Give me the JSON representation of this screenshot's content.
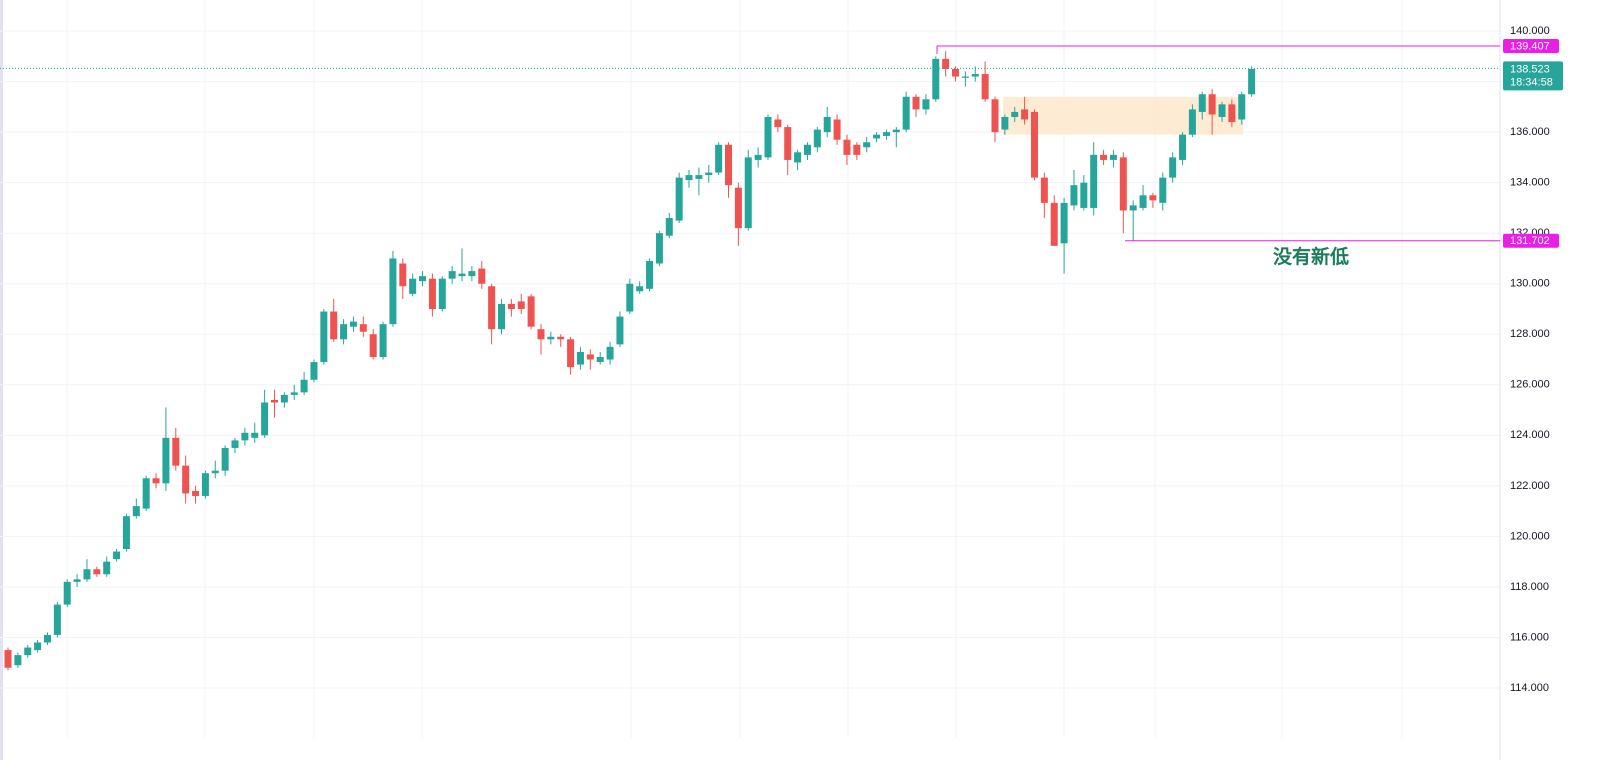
{
  "chart_data": {
    "type": "candlestick",
    "open": [
      115.5,
      114.9,
      115.3,
      115.5,
      115.8,
      116.1,
      117.3,
      118.2,
      118.3,
      118.7,
      118.5,
      119.1,
      119.5,
      120.8,
      121.1,
      122.3,
      122.1,
      123.9,
      122.8,
      121.8,
      121.6,
      122.5,
      122.6,
      123.5,
      123.8,
      123.9,
      124.0,
      125.4,
      125.3,
      125.6,
      125.7,
      126.2,
      126.9,
      128.9,
      127.8,
      128.3,
      128.4,
      128.0,
      127.1,
      128.4,
      130.8,
      129.6,
      130.1,
      130.2,
      129.0,
      130.2,
      130.3,
      130.3,
      130.6,
      129.9,
      128.2,
      129.2,
      129.3,
      129.5,
      128.2,
      127.8,
      127.9,
      127.8,
      126.8,
      127.2,
      126.9,
      127.0,
      127.6,
      128.9,
      129.7,
      129.8,
      130.8,
      131.9,
      132.5,
      134.1,
      134.15,
      134.3,
      134.4,
      135.5,
      133.8,
      132.2,
      134.9,
      135.0,
      136.5,
      136.2,
      134.8,
      135.1,
      135.4,
      136.0,
      136.5,
      135.7,
      135.5,
      135.4,
      135.75,
      135.85,
      136.0,
      136.1,
      137.4,
      136.9,
      137.3,
      138.9,
      138.5,
      138.15,
      138.2,
      138.3,
      137.3,
      136.1,
      136.6,
      136.9,
      136.8,
      134.2,
      133.2,
      131.6,
      133.1,
      133.0,
      133.0,
      135.1,
      134.9,
      135.0,
      132.9,
      133.0,
      133.5,
      133.2,
      134.2,
      134.9,
      135.9,
      136.8,
      137.5,
      136.6,
      137.1,
      136.5,
      137.5
    ],
    "high": [
      115.6,
      115.4,
      115.7,
      115.9,
      116.2,
      117.4,
      118.3,
      118.5,
      119.1,
      118.8,
      119.2,
      119.5,
      120.9,
      121.5,
      122.4,
      122.5,
      125.1,
      124.3,
      123.2,
      122.0,
      122.6,
      123.0,
      123.6,
      123.9,
      124.3,
      124.5,
      125.8,
      125.8,
      125.7,
      126.0,
      126.5,
      127.0,
      129.0,
      129.4,
      128.6,
      128.7,
      128.7,
      128.2,
      128.5,
      131.3,
      131.0,
      130.4,
      130.5,
      130.4,
      130.3,
      130.7,
      131.4,
      130.7,
      130.9,
      130.0,
      129.4,
      129.4,
      129.6,
      129.6,
      128.4,
      128.1,
      128.0,
      127.9,
      127.5,
      127.4,
      127.3,
      127.7,
      128.9,
      130.2,
      130.1,
      131.0,
      132.1,
      132.8,
      134.4,
      134.5,
      134.6,
      134.7,
      135.6,
      135.6,
      134.0,
      135.3,
      135.4,
      136.7,
      136.7,
      136.3,
      135.3,
      135.6,
      136.2,
      137.0,
      136.7,
      135.9,
      135.6,
      135.8,
      136.0,
      136.1,
      136.2,
      137.6,
      137.5,
      137.5,
      139.0,
      139.2,
      138.6,
      138.4,
      138.6,
      138.8,
      137.4,
      136.7,
      137.0,
      137.4,
      136.9,
      134.4,
      133.5,
      133.4,
      134.5,
      134.3,
      135.6,
      135.3,
      135.3,
      135.2,
      133.3,
      133.9,
      133.6,
      134.4,
      135.2,
      136.0,
      137.1,
      137.6,
      137.7,
      137.2,
      137.3,
      137.6,
      138.6
    ],
    "low": [
      114.7,
      114.8,
      115.2,
      115.4,
      115.7,
      116.0,
      117.2,
      118.0,
      118.2,
      118.4,
      118.4,
      119.0,
      119.4,
      120.7,
      121.0,
      121.9,
      121.8,
      122.6,
      121.3,
      121.3,
      121.5,
      122.3,
      122.4,
      123.3,
      123.6,
      123.7,
      123.9,
      124.7,
      125.1,
      125.4,
      125.6,
      126.1,
      126.8,
      127.7,
      127.6,
      128.1,
      127.9,
      127.0,
      127.0,
      128.3,
      129.4,
      129.5,
      129.9,
      128.7,
      128.9,
      130.0,
      130.1,
      130.1,
      129.8,
      127.6,
      128.0,
      128.7,
      128.8,
      128.2,
      127.2,
      127.6,
      127.5,
      126.4,
      126.6,
      126.6,
      126.8,
      126.8,
      127.5,
      128.8,
      129.6,
      129.7,
      130.7,
      131.8,
      132.4,
      133.8,
      133.5,
      134.0,
      134.3,
      133.4,
      131.5,
      132.1,
      134.6,
      134.9,
      136.0,
      134.3,
      134.5,
      134.9,
      135.2,
      135.8,
      135.5,
      134.7,
      134.9,
      135.2,
      135.6,
      135.7,
      135.4,
      136.0,
      136.6,
      136.7,
      137.2,
      138.2,
      138.0,
      137.8,
      138.0,
      137.2,
      135.6,
      135.9,
      136.4,
      136.3,
      134.1,
      132.6,
      131.5,
      130.4,
      132.9,
      132.9,
      132.7,
      134.7,
      134.6,
      132.0,
      131.7,
      132.9,
      133.0,
      132.9,
      134.0,
      134.7,
      135.8,
      136.5,
      135.9,
      136.4,
      136.2,
      136.3,
      137.4
    ],
    "close": [
      114.8,
      115.3,
      115.6,
      115.8,
      116.1,
      117.3,
      118.2,
      118.3,
      118.7,
      118.5,
      119.0,
      119.4,
      120.8,
      121.2,
      122.3,
      122.1,
      123.9,
      122.8,
      121.7,
      121.6,
      122.5,
      122.6,
      123.5,
      123.8,
      124.1,
      124.1,
      125.3,
      125.3,
      125.6,
      125.7,
      126.2,
      126.9,
      128.9,
      127.8,
      128.4,
      128.5,
      128.1,
      127.1,
      128.4,
      131.0,
      129.9,
      130.2,
      130.3,
      129.0,
      130.2,
      130.5,
      130.4,
      130.5,
      130.0,
      128.2,
      129.2,
      129.0,
      129.0,
      128.3,
      127.8,
      127.9,
      127.8,
      126.7,
      127.3,
      127.0,
      127.1,
      127.5,
      128.7,
      130.0,
      129.9,
      130.9,
      132.0,
      132.6,
      134.2,
      134.3,
      134.3,
      134.4,
      135.5,
      133.9,
      132.2,
      135.0,
      135.1,
      136.6,
      136.2,
      134.9,
      135.2,
      135.5,
      136.1,
      136.6,
      135.7,
      135.1,
      135.1,
      135.6,
      135.9,
      136.0,
      136.1,
      137.4,
      136.9,
      137.3,
      138.9,
      138.5,
      138.2,
      138.2,
      138.3,
      137.3,
      136.0,
      136.6,
      136.8,
      136.5,
      134.2,
      133.2,
      131.5,
      133.2,
      133.9,
      134.0,
      135.1,
      134.9,
      135.1,
      132.9,
      133.1,
      133.5,
      133.3,
      134.2,
      135.0,
      135.9,
      136.9,
      137.5,
      136.7,
      137.1,
      136.4,
      137.5,
      138.5
    ],
    "up_color": "#26a69a",
    "down_color": "#ef5350",
    "ylim": [
      112.02,
      141.23
    ],
    "yticks": [
      {
        "value": 114,
        "label": "114.000"
      },
      {
        "value": 116,
        "label": "116.000"
      },
      {
        "value": 118,
        "label": "118.000"
      },
      {
        "value": 120,
        "label": "120.000"
      },
      {
        "value": 122,
        "label": "122.000"
      },
      {
        "value": 124,
        "label": "124.000"
      },
      {
        "value": 126,
        "label": "126.000"
      },
      {
        "value": 128,
        "label": "128.000"
      },
      {
        "value": 130,
        "label": "130.000"
      },
      {
        "value": 132,
        "label": "132.000"
      },
      {
        "value": 134,
        "label": "134.000"
      },
      {
        "value": 136,
        "label": "136.000"
      },
      {
        "value": 138,
        "label": "138.000"
      },
      {
        "value": 140,
        "label": "140.000"
      }
    ],
    "grid": true,
    "levels": [
      139.407,
      131.702
    ],
    "level_color": "#e91ee9",
    "current_price": 138.523,
    "countdown": "18:34:58",
    "zone": {
      "top": 137.4,
      "bottom": 135.9,
      "color": "#fde9cf"
    },
    "annotation": "没有新低"
  }
}
